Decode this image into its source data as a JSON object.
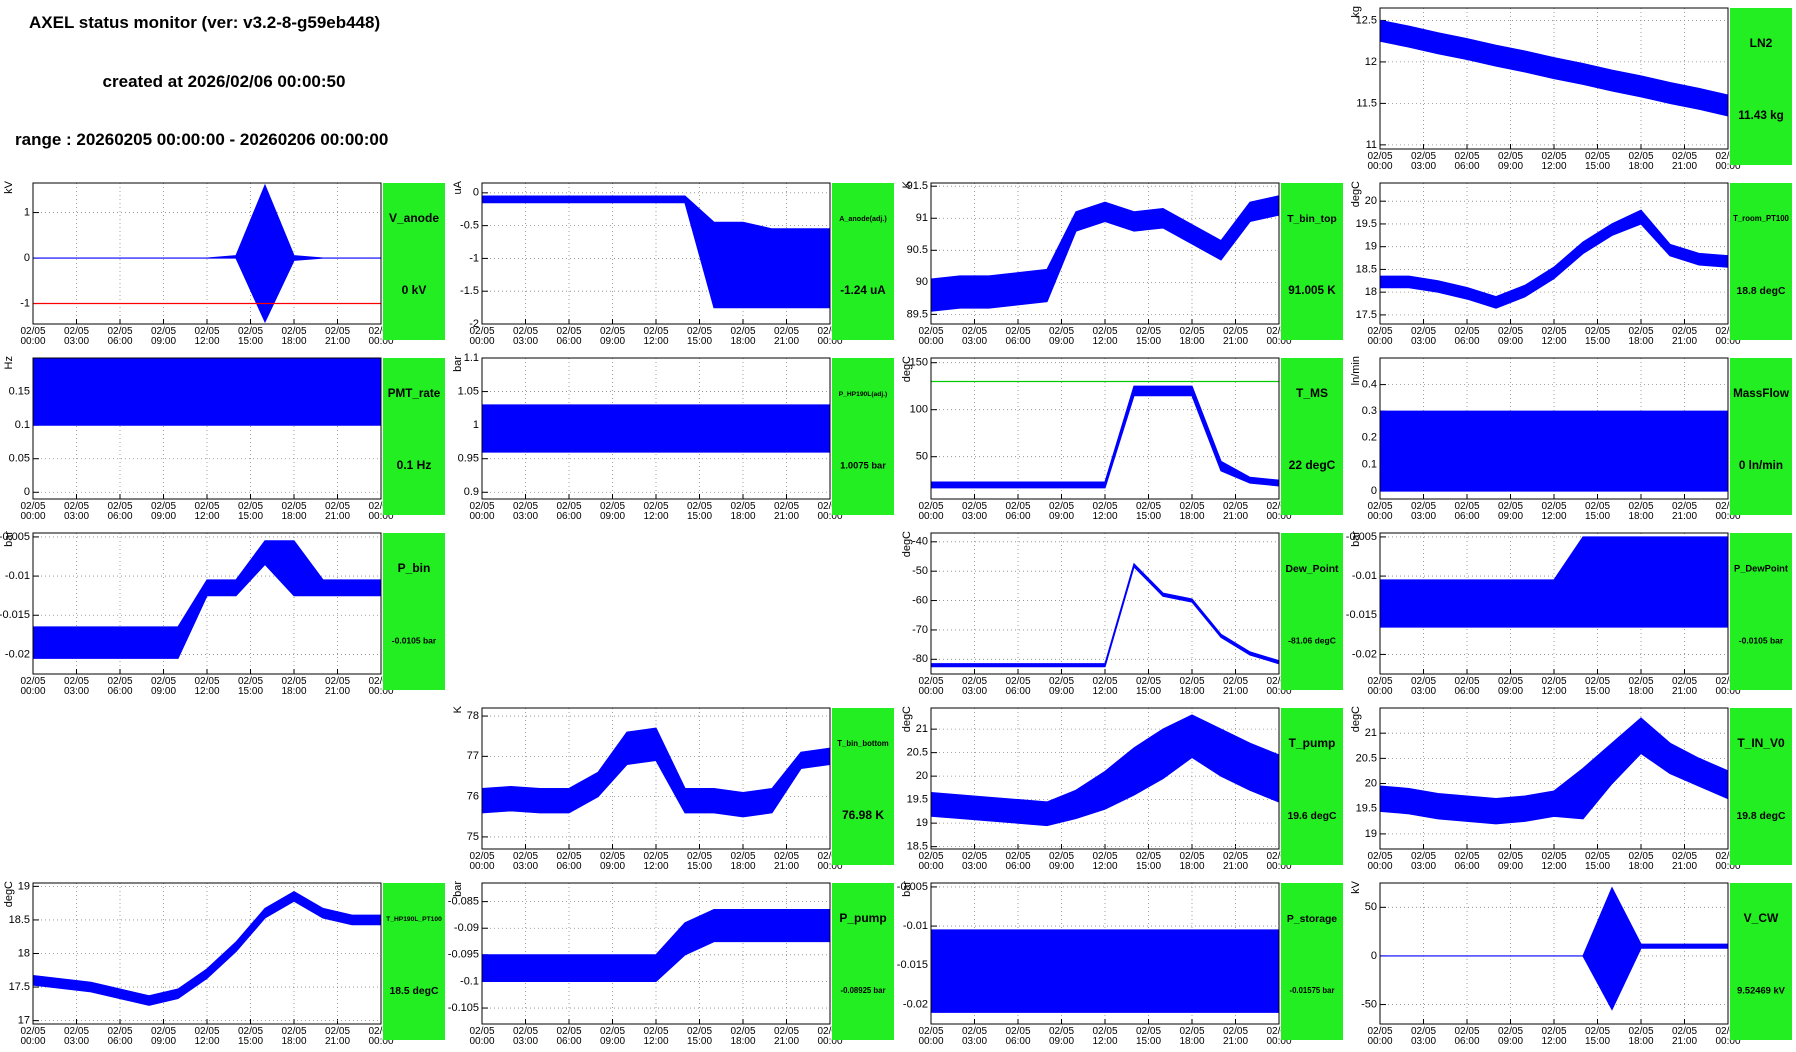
{
  "header": {
    "title": "AXEL status monitor (ver: v3.2-8-g59eb448)",
    "created": "created at 2026/02/06 00:00:50",
    "range": "range : 20260205 00:00:00 - 20260206 00:00:00"
  },
  "time_axis": {
    "x": [
      0,
      2,
      4,
      6,
      8,
      10,
      12,
      14,
      16,
      18,
      20,
      22,
      24
    ],
    "xlim": [
      0,
      24
    ],
    "xticks": [
      {
        "value": 0,
        "date": "02/05",
        "time": "00:00"
      },
      {
        "value": 3,
        "date": "02/05",
        "time": "03:00"
      },
      {
        "value": 6,
        "date": "02/05",
        "time": "06:00"
      },
      {
        "value": 9,
        "date": "02/05",
        "time": "09:00"
      },
      {
        "value": 12,
        "date": "02/05",
        "time": "12:00"
      },
      {
        "value": 15,
        "date": "02/05",
        "time": "15:00"
      },
      {
        "value": 18,
        "date": "02/05",
        "time": "18:00"
      },
      {
        "value": 21,
        "date": "02/05",
        "time": "21:00"
      },
      {
        "value": 24,
        "date": "02/06",
        "time": "00:00"
      }
    ]
  },
  "chart_data": [
    {
      "type": "band",
      "title": "LN2",
      "value_text": "11.43 kg",
      "ylabel": "kg",
      "ylim": [
        10.95,
        12.65
      ],
      "yticks": [
        11,
        11.5,
        12,
        12.5
      ],
      "grid": true,
      "color": "#0000ff",
      "low": [
        12.25,
        12.18,
        12.1,
        12.03,
        11.95,
        11.88,
        11.8,
        11.73,
        11.65,
        11.58,
        11.5,
        11.43,
        11.35
      ],
      "high": [
        12.5,
        12.43,
        12.35,
        12.28,
        12.2,
        12.13,
        12.05,
        11.98,
        11.9,
        11.83,
        11.75,
        11.68,
        11.6
      ]
    },
    {
      "type": "band",
      "title": "V_anode",
      "value_text": "0 kV",
      "ylabel": "kV",
      "ylim": [
        -1.45,
        1.65
      ],
      "yticks": [
        -1,
        0,
        1
      ],
      "grid": true,
      "color": "#0000ff",
      "ref_line": -1,
      "ref_color": "#ff0000",
      "low": [
        0,
        0,
        0,
        0,
        0,
        0,
        0,
        0,
        -1.4,
        -0.05,
        0,
        0,
        0
      ],
      "high": [
        0,
        0,
        0,
        0,
        0,
        0,
        0,
        0.05,
        1.6,
        0.05,
        0,
        0,
        0
      ]
    },
    {
      "type": "band",
      "title": "A_anode(adj.)",
      "value_text": "-1.24 uA",
      "ylabel": "uA",
      "ylim": [
        -2,
        0.15
      ],
      "yticks": [
        -2,
        -1.5,
        -1,
        -0.5,
        0
      ],
      "grid": true,
      "color": "#0000ff",
      "low": [
        -0.15,
        -0.15,
        -0.15,
        -0.15,
        -0.15,
        -0.15,
        -0.15,
        -0.15,
        -1.75,
        -1.75,
        -1.75,
        -1.75,
        -1.75
      ],
      "high": [
        -0.05,
        -0.05,
        -0.05,
        -0.05,
        -0.05,
        -0.05,
        -0.05,
        -0.05,
        -0.45,
        -0.45,
        -0.55,
        -0.55,
        -0.55
      ]
    },
    {
      "type": "band",
      "title": "T_bin_top",
      "value_text": "91.005 K",
      "ylabel": "K",
      "ylim": [
        89.35,
        91.55
      ],
      "yticks": [
        89.5,
        90,
        90.5,
        91,
        91.5
      ],
      "grid": true,
      "color": "#0000ff",
      "low": [
        89.55,
        89.6,
        89.6,
        89.65,
        89.7,
        90.8,
        90.95,
        90.8,
        90.85,
        90.6,
        90.35,
        90.95,
        91.05
      ],
      "high": [
        90.05,
        90.1,
        90.1,
        90.15,
        90.2,
        91.1,
        91.25,
        91.1,
        91.15,
        90.9,
        90.65,
        91.25,
        91.35
      ]
    },
    {
      "type": "band",
      "title": "T_room_PT100",
      "value_text": "18.8 degC",
      "ylabel": "degC",
      "ylim": [
        17.3,
        20.4
      ],
      "yticks": [
        17.5,
        18,
        18.5,
        19,
        19.5,
        20
      ],
      "grid": true,
      "color": "#0000ff",
      "low": [
        18.1,
        18.1,
        18.0,
        17.85,
        17.65,
        17.9,
        18.3,
        18.85,
        19.25,
        19.5,
        18.8,
        18.6,
        18.55
      ],
      "high": [
        18.35,
        18.35,
        18.25,
        18.1,
        17.9,
        18.15,
        18.55,
        19.1,
        19.5,
        19.8,
        19.05,
        18.85,
        18.8
      ]
    },
    {
      "type": "band",
      "title": "PMT_rate",
      "value_text": "0.1 Hz",
      "ylabel": "Hz",
      "ylim": [
        -0.01,
        0.2
      ],
      "yticks": [
        0,
        0.05,
        0.1,
        0.15
      ],
      "grid": true,
      "color": "#0000ff",
      "low": [
        0.1,
        0.1,
        0.1,
        0.1,
        0.1,
        0.1,
        0.1,
        0.1,
        0.1,
        0.1,
        0.1,
        0.1,
        0.1
      ],
      "high": [
        0.2,
        0.2,
        0.2,
        0.2,
        0.2,
        0.2,
        0.2,
        0.2,
        0.2,
        0.2,
        0.2,
        0.2,
        0.2
      ]
    },
    {
      "type": "band",
      "title": "P_HP190L(adj.)",
      "value_text": "1.0075 bar",
      "ylabel": "bar",
      "ylim": [
        0.89,
        1.1
      ],
      "yticks": [
        0.9,
        0.95,
        1,
        1.05,
        1.1
      ],
      "grid": true,
      "color": "#0000ff",
      "low": [
        0.96,
        0.96,
        0.96,
        0.96,
        0.96,
        0.96,
        0.96,
        0.96,
        0.96,
        0.96,
        0.96,
        0.96,
        0.96
      ],
      "high": [
        1.03,
        1.03,
        1.03,
        1.03,
        1.03,
        1.03,
        1.03,
        1.03,
        1.03,
        1.03,
        1.03,
        1.03,
        1.03
      ]
    },
    {
      "type": "band",
      "title": "T_MS",
      "value_text": "22 degC",
      "ylabel": "degC",
      "ylim": [
        5,
        155
      ],
      "yticks": [
        50,
        100,
        150
      ],
      "grid": true,
      "color": "#0000ff",
      "ref_line": 130,
      "ref_color": "#00cc00",
      "low": [
        17,
        17,
        17,
        17,
        17,
        17,
        17,
        115,
        115,
        115,
        35,
        22,
        19
      ],
      "high": [
        23,
        23,
        23,
        23,
        23,
        23,
        23,
        125,
        125,
        125,
        45,
        28,
        25
      ]
    },
    {
      "type": "band",
      "title": "MassFlow",
      "value_text": "0 ln/min",
      "ylabel": "ln/min",
      "ylim": [
        -0.03,
        0.5
      ],
      "yticks": [
        0,
        0.1,
        0.2,
        0.3,
        0.4
      ],
      "grid": true,
      "color": "#0000ff",
      "low": [
        0,
        0,
        0,
        0,
        0,
        0,
        0,
        0,
        0,
        0,
        0,
        0,
        0
      ],
      "high": [
        0.3,
        0.3,
        0.3,
        0.3,
        0.3,
        0.3,
        0.3,
        0.3,
        0.3,
        0.3,
        0.3,
        0.3,
        0.3
      ]
    },
    {
      "type": "band",
      "title": "P_bin",
      "value_text": "-0.0105 bar",
      "ylabel": "bar",
      "ylim": [
        -0.0225,
        -0.0045
      ],
      "yticks": [
        -0.02,
        -0.015,
        -0.01,
        -0.005
      ],
      "grid": true,
      "color": "#0000ff",
      "low": [
        -0.0205,
        -0.0205,
        -0.0205,
        -0.0205,
        -0.0205,
        -0.0205,
        -0.0125,
        -0.0125,
        -0.0085,
        -0.0125,
        -0.0125,
        -0.0125,
        -0.0125
      ],
      "high": [
        -0.0165,
        -0.0165,
        -0.0165,
        -0.0165,
        -0.0165,
        -0.0165,
        -0.0105,
        -0.0105,
        -0.0055,
        -0.0055,
        -0.0105,
        -0.0105,
        -0.0105
      ]
    },
    {
      "type": "band",
      "title": "Dew_Point",
      "value_text": "-81.06 degC",
      "ylabel": "degC",
      "ylim": [
        -85,
        -37
      ],
      "yticks": [
        -80,
        -70,
        -60,
        -50,
        -40
      ],
      "grid": true,
      "color": "#0000ff",
      "low": [
        -82.5,
        -82.5,
        -82.5,
        -82.5,
        -82.5,
        -82.5,
        -82.5,
        -48.5,
        -58.5,
        -60.5,
        -72.5,
        -78.5,
        -81.5
      ],
      "high": [
        -81.5,
        -81.5,
        -81.5,
        -81.5,
        -81.5,
        -81.5,
        -81.5,
        -47.5,
        -57.5,
        -59.5,
        -71.5,
        -77.5,
        -80.5
      ]
    },
    {
      "type": "band",
      "title": "P_DewPoint",
      "value_text": "-0.0105 bar",
      "ylabel": "bar",
      "ylim": [
        -0.0225,
        -0.0045
      ],
      "yticks": [
        -0.02,
        -0.015,
        -0.01,
        -0.005
      ],
      "grid": true,
      "color": "#0000ff",
      "low": [
        -0.0165,
        -0.0165,
        -0.0165,
        -0.0165,
        -0.0165,
        -0.0165,
        -0.0165,
        -0.0165,
        -0.0165,
        -0.0165,
        -0.0165,
        -0.0165,
        -0.0165
      ],
      "high": [
        -0.0105,
        -0.0105,
        -0.0105,
        -0.0105,
        -0.0105,
        -0.0105,
        -0.0105,
        -0.005,
        -0.005,
        -0.005,
        -0.005,
        -0.005,
        -0.005
      ]
    },
    {
      "type": "band",
      "title": "T_bin_bottom",
      "value_text": "76.98 K",
      "ylabel": "K",
      "ylim": [
        74.7,
        78.2
      ],
      "yticks": [
        75,
        76,
        77,
        78
      ],
      "grid": true,
      "color": "#0000ff",
      "low": [
        75.6,
        75.65,
        75.6,
        75.6,
        76.0,
        76.8,
        76.9,
        75.6,
        75.6,
        75.5,
        75.6,
        76.7,
        76.8
      ],
      "high": [
        76.2,
        76.25,
        76.2,
        76.2,
        76.6,
        77.6,
        77.7,
        76.2,
        76.2,
        76.1,
        76.2,
        77.1,
        77.2
      ]
    },
    {
      "type": "band",
      "title": "T_pump",
      "value_text": "19.6 degC",
      "ylabel": "degC",
      "ylim": [
        18.45,
        21.45
      ],
      "yticks": [
        18.5,
        19,
        19.5,
        20,
        20.5,
        21
      ],
      "grid": true,
      "color": "#0000ff",
      "low": [
        19.15,
        19.1,
        19.05,
        19.0,
        18.95,
        19.1,
        19.3,
        19.6,
        19.95,
        20.4,
        20.0,
        19.7,
        19.45
      ],
      "high": [
        19.65,
        19.6,
        19.55,
        19.5,
        19.45,
        19.7,
        20.1,
        20.6,
        21.0,
        21.3,
        21.0,
        20.7,
        20.45
      ]
    },
    {
      "type": "band",
      "title": "T_IN_V0",
      "value_text": "19.8 degC",
      "ylabel": "degC",
      "ylim": [
        18.7,
        21.5
      ],
      "yticks": [
        19,
        19.5,
        20,
        20.5,
        21
      ],
      "grid": true,
      "color": "#0000ff",
      "low": [
        19.45,
        19.4,
        19.3,
        19.25,
        19.2,
        19.25,
        19.35,
        19.3,
        20.0,
        20.6,
        20.2,
        19.95,
        19.7
      ],
      "high": [
        19.95,
        19.9,
        19.8,
        19.75,
        19.7,
        19.75,
        19.85,
        20.3,
        20.8,
        21.3,
        20.8,
        20.5,
        20.25
      ]
    },
    {
      "type": "band",
      "title": "T_HP190L_PT100",
      "value_text": "18.5 degC",
      "ylabel": "degC",
      "ylim": [
        16.95,
        19.05
      ],
      "yticks": [
        17,
        17.5,
        18,
        18.5,
        19
      ],
      "grid": true,
      "color": "#0000ff",
      "low": [
        17.53,
        17.48,
        17.43,
        17.33,
        17.23,
        17.33,
        17.63,
        18.03,
        18.53,
        18.78,
        18.53,
        18.43,
        18.43
      ],
      "high": [
        17.67,
        17.62,
        17.57,
        17.47,
        17.37,
        17.47,
        17.77,
        18.17,
        18.67,
        18.92,
        18.67,
        18.57,
        18.57
      ]
    },
    {
      "type": "band",
      "title": "P_pump",
      "value_text": "-0.08925 bar",
      "ylabel": "bar",
      "ylim": [
        -0.108,
        -0.0815
      ],
      "yticks": [
        -0.105,
        -0.1,
        -0.095,
        -0.09,
        -0.085
      ],
      "grid": true,
      "color": "#0000ff",
      "low": [
        -0.1,
        -0.1,
        -0.1,
        -0.1,
        -0.1,
        -0.1,
        -0.1,
        -0.095,
        -0.0925,
        -0.0925,
        -0.0925,
        -0.0925,
        -0.0925
      ],
      "high": [
        -0.095,
        -0.095,
        -0.095,
        -0.095,
        -0.095,
        -0.095,
        -0.095,
        -0.089,
        -0.0865,
        -0.0865,
        -0.0865,
        -0.0865,
        -0.0865
      ]
    },
    {
      "type": "band",
      "title": "P_storage",
      "value_text": "-0.01575 bar",
      "ylabel": "bar",
      "ylim": [
        -0.0225,
        -0.0045
      ],
      "yticks": [
        -0.02,
        -0.015,
        -0.01,
        -0.005
      ],
      "grid": true,
      "color": "#0000ff",
      "low": [
        -0.021,
        -0.021,
        -0.021,
        -0.021,
        -0.021,
        -0.021,
        -0.021,
        -0.021,
        -0.021,
        -0.021,
        -0.021,
        -0.021,
        -0.021
      ],
      "high": [
        -0.0105,
        -0.0105,
        -0.0105,
        -0.0105,
        -0.0105,
        -0.0105,
        -0.0105,
        -0.0105,
        -0.0105,
        -0.0105,
        -0.0105,
        -0.0105,
        -0.0105
      ]
    },
    {
      "type": "band",
      "title": "V_CW",
      "value_text": "9.52469 kV",
      "ylabel": "kV",
      "ylim": [
        -70,
        75
      ],
      "yticks": [
        -50,
        0,
        50
      ],
      "grid": true,
      "color": "#0000ff",
      "low": [
        0,
        0,
        0,
        0,
        0,
        0,
        0,
        0,
        -55,
        8,
        8,
        8,
        8
      ],
      "high": [
        0,
        0,
        0,
        0,
        0,
        0,
        0,
        0,
        70,
        12,
        12,
        12,
        12
      ]
    }
  ]
}
